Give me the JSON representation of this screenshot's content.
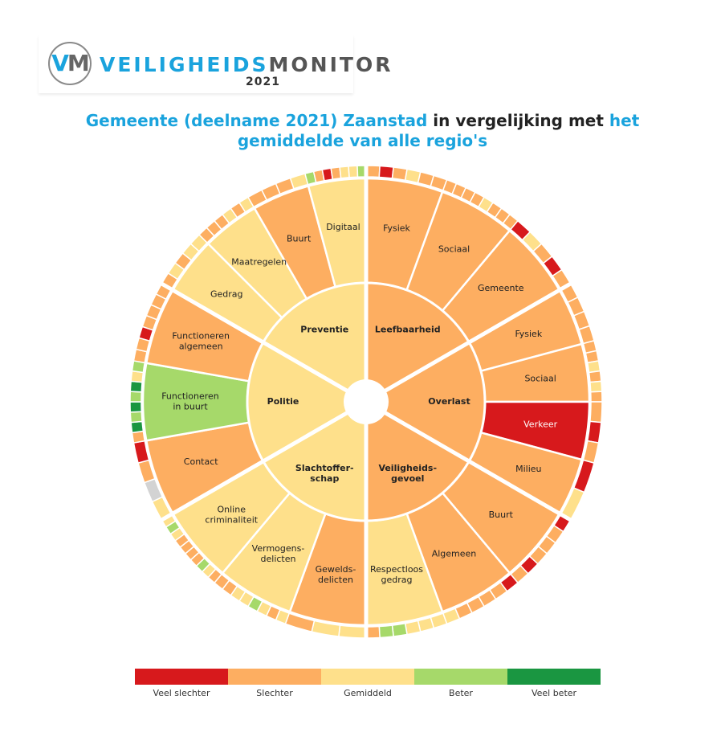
{
  "logo": {
    "mark_v": "V",
    "mark_m": "M",
    "word_a": "VEILIGHEIDS",
    "word_b": "MONITOR",
    "year": "2021"
  },
  "title": {
    "part1": "Gemeente (deelname 2021) Zaanstad",
    "part2": " in vergelijking met ",
    "part3": "het",
    "part4": "gemiddelde van alle regio's"
  },
  "colors": {
    "veel_slechter": "#d7191c",
    "slechter": "#fdae61",
    "gemiddeld": "#fee08b",
    "beter": "#a6d96a",
    "veel_beter": "#1a9641",
    "geen": "#d3d3d3"
  },
  "legend": [
    {
      "label": "Veel slechter",
      "color": "#d7191c"
    },
    {
      "label": "Slechter",
      "color": "#fdae61"
    },
    {
      "label": "Gemiddeld",
      "color": "#fee08b"
    },
    {
      "label": "Beter",
      "color": "#a6d96a"
    },
    {
      "label": "Veel beter",
      "color": "#1a9641"
    }
  ],
  "chart_data": {
    "type": "sunburst",
    "themes": [
      {
        "label": "Leefbaarheid",
        "rating": "slechter",
        "subthemes": [
          {
            "label": "Fysiek",
            "rating": "slechter",
            "items": [
              "slechter",
              "veel_slechter",
              "slechter",
              "gemiddeld",
              "slechter",
              "slechter"
            ]
          },
          {
            "label": "Sociaal",
            "rating": "slechter",
            "items": [
              "slechter",
              "slechter",
              "slechter",
              "slechter",
              "gemiddeld",
              "slechter",
              "slechter",
              "slechter"
            ]
          },
          {
            "label": "Gemeente",
            "rating": "slechter",
            "items": [
              "veel_slechter",
              "gemiddeld",
              "slechter",
              "veel_slechter",
              "slechter"
            ]
          }
        ]
      },
      {
        "label": "Overlast",
        "rating": "slechter",
        "subthemes": [
          {
            "label": "Fysiek",
            "rating": "slechter",
            "items": [
              "slechter",
              "slechter",
              "slechter",
              "slechter"
            ]
          },
          {
            "label": "Sociaal",
            "rating": "slechter",
            "items": [
              "slechter",
              "slechter",
              "gemiddeld",
              "slechter",
              "gemiddeld",
              "slechter"
            ]
          },
          {
            "label": "Verkeer",
            "rating": "veel_slechter",
            "items": [
              "slechter",
              "veel_slechter",
              "slechter"
            ]
          },
          {
            "label": "Milieu",
            "rating": "slechter",
            "items": [
              "veel_slechter",
              "gemiddeld"
            ]
          }
        ]
      },
      {
        "label": "Veiligheids-\ngevoel",
        "rating": "slechter",
        "subthemes": [
          {
            "label": "Buurt",
            "rating": "slechter",
            "items": [
              "veel_slechter",
              "slechter",
              "slechter",
              "slechter",
              "veel_slechter",
              "slechter"
            ]
          },
          {
            "label": "Algemeen",
            "rating": "slechter",
            "items": [
              "veel_slechter",
              "slechter",
              "slechter",
              "slechter",
              "slechter",
              "gemiddeld"
            ]
          },
          {
            "label": "Respectloos\ngedrag",
            "rating": "gemiddeld",
            "items": [
              "gemiddeld",
              "gemiddeld",
              "gemiddeld",
              "beter",
              "beter",
              "slechter"
            ]
          }
        ]
      },
      {
        "label": "Slachtoffer-\nschap",
        "rating": "gemiddeld",
        "subthemes": [
          {
            "label": "Gewelds-\ndelicten",
            "rating": "slechter",
            "items": [
              "gemiddeld",
              "gemiddeld",
              "slechter"
            ]
          },
          {
            "label": "Vermogens-\ndelicten",
            "rating": "gemiddeld",
            "items": [
              "gemiddeld",
              "slechter",
              "gemiddeld",
              "beter",
              "gemiddeld",
              "gemiddeld",
              "slechter",
              "slechter"
            ]
          },
          {
            "label": "Online\ncriminaliteit",
            "rating": "gemiddeld",
            "items": [
              "slechter",
              "gemiddeld",
              "beter",
              "slechter",
              "slechter",
              "slechter",
              "slechter",
              "gemiddeld",
              "beter",
              "gemiddeld"
            ]
          }
        ]
      },
      {
        "label": "Politie",
        "rating": "gemiddeld",
        "subthemes": [
          {
            "label": "Contact",
            "rating": "slechter",
            "items": [
              "gemiddeld",
              "geen",
              "slechter",
              "veel_slechter"
            ]
          },
          {
            "label": "Functioneren\nin buurt",
            "rating": "beter",
            "items": [
              "slechter",
              "veel_beter",
              "beter",
              "veel_beter",
              "beter",
              "veel_beter",
              "gemiddeld",
              "beter"
            ]
          },
          {
            "label": "Functioneren\nalgemeen",
            "rating": "slechter",
            "items": [
              "slechter",
              "slechter",
              "veel_slechter",
              "slechter",
              "slechter",
              "slechter",
              "slechter"
            ]
          }
        ]
      },
      {
        "label": "Preventie",
        "rating": "gemiddeld",
        "subthemes": [
          {
            "label": "Gedrag",
            "rating": "gemiddeld",
            "items": [
              "slechter",
              "gemiddeld",
              "slechter",
              "gemiddeld",
              "gemiddeld"
            ]
          },
          {
            "label": "Maatregelen",
            "rating": "gemiddeld",
            "items": [
              "slechter",
              "slechter",
              "slechter",
              "gemiddeld",
              "slechter",
              "gemiddeld"
            ]
          },
          {
            "label": "Buurt",
            "rating": "slechter",
            "items": [
              "slechter",
              "slechter",
              "slechter",
              "gemiddeld"
            ]
          },
          {
            "label": "Digitaal",
            "rating": "gemiddeld",
            "items": [
              "beter",
              "slechter",
              "veel_slechter",
              "slechter",
              "gemiddeld",
              "gemiddeld",
              "beter"
            ]
          }
        ]
      }
    ]
  }
}
